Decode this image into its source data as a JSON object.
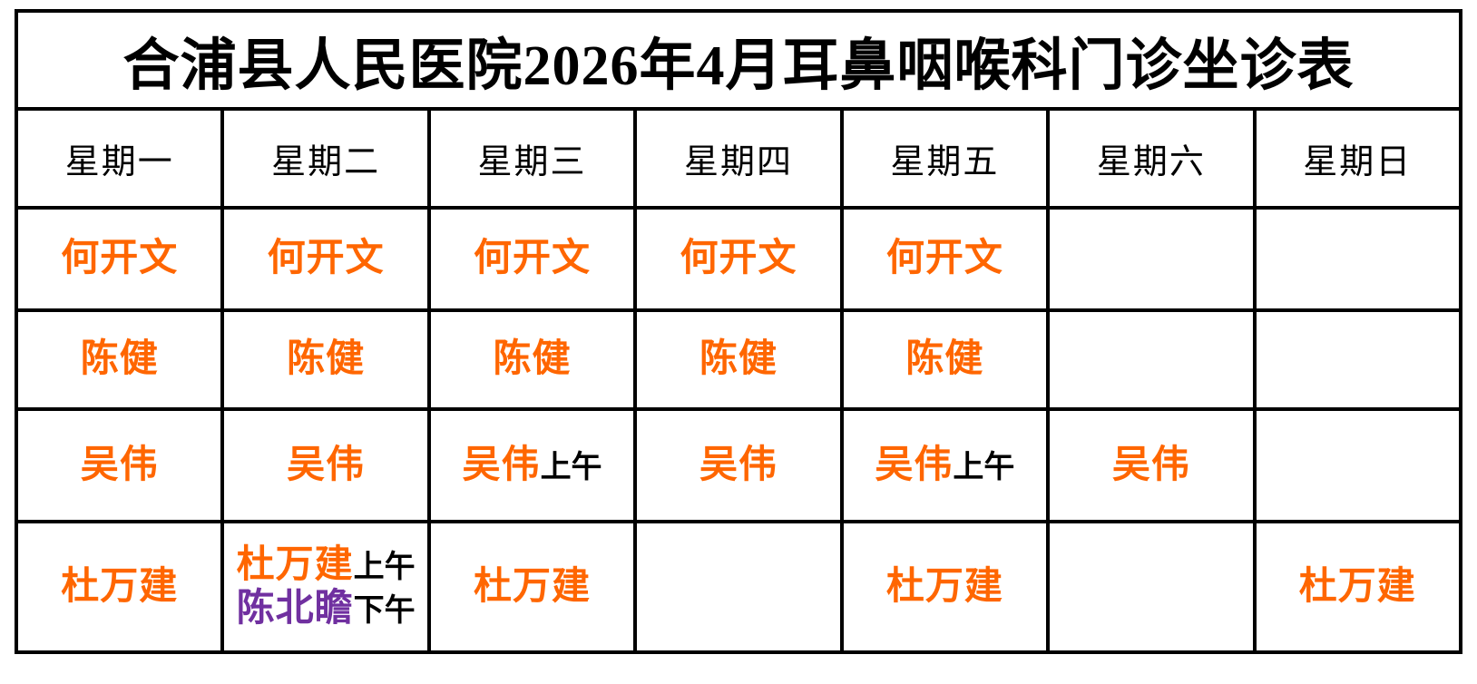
{
  "title": "合浦县人民医院2026年4月耳鼻咽喉科门诊坐诊表",
  "colors": {
    "doctor_orange": "#FF6600",
    "doctor_purple": "#7030A0",
    "text_black": "#000000",
    "border_black": "#000000",
    "background_white": "#FFFFFF"
  },
  "table": {
    "weekday_headers": [
      "星期一",
      "星期二",
      "星期三",
      "星期四",
      "星期五",
      "星期六",
      "星期日"
    ],
    "rows": [
      {
        "cells": [
          {
            "lines": [
              [
                {
                  "text": "何开文",
                  "kind": "doctor",
                  "color": "#FF6600"
                }
              ]
            ]
          },
          {
            "lines": [
              [
                {
                  "text": "何开文",
                  "kind": "doctor",
                  "color": "#FF6600"
                }
              ]
            ]
          },
          {
            "lines": [
              [
                {
                  "text": "何开文",
                  "kind": "doctor",
                  "color": "#FF6600"
                }
              ]
            ]
          },
          {
            "lines": [
              [
                {
                  "text": "何开文",
                  "kind": "doctor",
                  "color": "#FF6600"
                }
              ]
            ]
          },
          {
            "lines": [
              [
                {
                  "text": "何开文",
                  "kind": "doctor",
                  "color": "#FF6600"
                }
              ]
            ]
          },
          {
            "lines": []
          },
          {
            "lines": []
          }
        ]
      },
      {
        "cells": [
          {
            "lines": [
              [
                {
                  "text": "陈健",
                  "kind": "doctor",
                  "color": "#FF6600"
                }
              ]
            ]
          },
          {
            "lines": [
              [
                {
                  "text": "陈健",
                  "kind": "doctor",
                  "color": "#FF6600"
                }
              ]
            ]
          },
          {
            "lines": [
              [
                {
                  "text": "陈健",
                  "kind": "doctor",
                  "color": "#FF6600"
                }
              ]
            ]
          },
          {
            "lines": [
              [
                {
                  "text": "陈健",
                  "kind": "doctor",
                  "color": "#FF6600"
                }
              ]
            ]
          },
          {
            "lines": [
              [
                {
                  "text": "陈健",
                  "kind": "doctor",
                  "color": "#FF6600"
                }
              ]
            ]
          },
          {
            "lines": []
          },
          {
            "lines": []
          }
        ]
      },
      {
        "cells": [
          {
            "lines": [
              [
                {
                  "text": "吴伟",
                  "kind": "doctor",
                  "color": "#FF6600"
                }
              ]
            ]
          },
          {
            "lines": [
              [
                {
                  "text": "吴伟",
                  "kind": "doctor",
                  "color": "#FF6600"
                }
              ]
            ]
          },
          {
            "lines": [
              [
                {
                  "text": "吴伟",
                  "kind": "doctor",
                  "color": "#FF6600"
                },
                {
                  "text": "上午",
                  "kind": "period",
                  "color": "#000000"
                }
              ]
            ]
          },
          {
            "lines": [
              [
                {
                  "text": "吴伟",
                  "kind": "doctor",
                  "color": "#FF6600"
                }
              ]
            ]
          },
          {
            "lines": [
              [
                {
                  "text": "吴伟",
                  "kind": "doctor",
                  "color": "#FF6600"
                },
                {
                  "text": "上午",
                  "kind": "period",
                  "color": "#000000"
                }
              ]
            ]
          },
          {
            "lines": [
              [
                {
                  "text": "吴伟",
                  "kind": "doctor",
                  "color": "#FF6600"
                }
              ]
            ]
          },
          {
            "lines": []
          }
        ]
      },
      {
        "cells": [
          {
            "lines": [
              [
                {
                  "text": "杜万建",
                  "kind": "doctor",
                  "color": "#FF6600"
                }
              ]
            ]
          },
          {
            "lines": [
              [
                {
                  "text": "杜万建",
                  "kind": "doctor",
                  "color": "#FF6600"
                },
                {
                  "text": "上午",
                  "kind": "period",
                  "color": "#000000"
                }
              ],
              [
                {
                  "text": "陈北瞻",
                  "kind": "doctor",
                  "color": "#7030A0"
                },
                {
                  "text": "下午",
                  "kind": "period",
                  "color": "#000000"
                }
              ]
            ]
          },
          {
            "lines": [
              [
                {
                  "text": "杜万建",
                  "kind": "doctor",
                  "color": "#FF6600"
                }
              ]
            ]
          },
          {
            "lines": []
          },
          {
            "lines": [
              [
                {
                  "text": "杜万建",
                  "kind": "doctor",
                  "color": "#FF6600"
                }
              ]
            ]
          },
          {
            "lines": []
          },
          {
            "lines": [
              [
                {
                  "text": "杜万建",
                  "kind": "doctor",
                  "color": "#FF6600"
                }
              ]
            ]
          }
        ]
      }
    ]
  }
}
